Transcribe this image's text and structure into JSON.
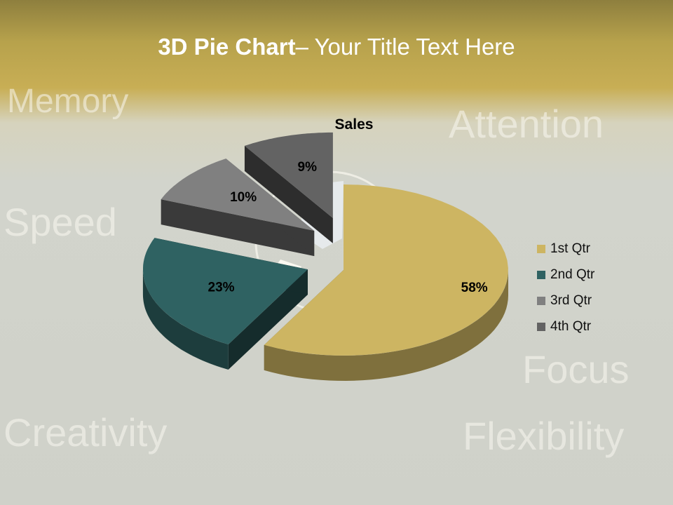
{
  "slide": {
    "title_bold": "3D Pie Chart",
    "title_rest": "– Your Title Text Here",
    "background_words": [
      "Attention",
      "Speed",
      "Focus",
      "Creativity",
      "Flexibility",
      "Memory"
    ]
  },
  "chart_data": {
    "type": "pie",
    "title": "Sales",
    "three_d": true,
    "categories": [
      "1st Qtr",
      "2nd Qtr",
      "3rd Qtr",
      "4th Qtr"
    ],
    "values": [
      58,
      23,
      10,
      9
    ],
    "data_labels": [
      "58%",
      "23%",
      "10%",
      "9%"
    ],
    "colors": [
      "#CDB562",
      "#2F6262",
      "#808080",
      "#636363"
    ],
    "exploded": [
      false,
      true,
      true,
      true
    ],
    "legend_position": "right"
  }
}
